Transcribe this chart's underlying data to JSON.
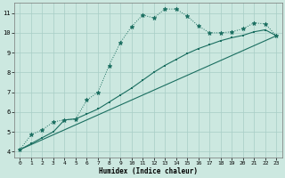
{
  "xlabel": "Humidex (Indice chaleur)",
  "bg_color": "#cce8e0",
  "line_color": "#1a6e60",
  "xlim": [
    -0.5,
    23.5
  ],
  "ylim": [
    3.7,
    11.5
  ],
  "xticks": [
    0,
    1,
    2,
    3,
    4,
    5,
    6,
    7,
    8,
    9,
    10,
    11,
    12,
    13,
    14,
    15,
    16,
    17,
    18,
    19,
    20,
    21,
    22,
    23
  ],
  "yticks": [
    4,
    5,
    6,
    7,
    8,
    9,
    10,
    11
  ],
  "curve1_x": [
    0,
    1,
    2,
    3,
    4,
    5,
    6,
    7,
    8,
    9,
    10,
    11,
    12,
    13,
    14,
    15,
    16,
    17,
    18,
    19,
    20,
    21,
    22,
    23
  ],
  "curve1_y": [
    4.1,
    4.85,
    5.1,
    5.5,
    5.6,
    5.65,
    6.6,
    7.0,
    8.35,
    9.5,
    10.3,
    10.9,
    10.75,
    11.2,
    11.2,
    10.85,
    10.35,
    10.0,
    10.0,
    10.05,
    10.2,
    10.5,
    10.45,
    9.85
  ],
  "curve2_x": [
    0,
    1,
    2,
    3,
    4,
    5,
    6,
    7,
    8,
    9,
    10,
    11,
    12,
    13,
    14,
    15,
    16,
    17,
    18,
    19,
    20,
    21,
    22,
    23
  ],
  "curve2_y": [
    4.1,
    4.4,
    4.7,
    5.0,
    5.6,
    5.65,
    5.9,
    6.15,
    6.5,
    6.85,
    7.2,
    7.6,
    8.0,
    8.35,
    8.65,
    8.95,
    9.2,
    9.4,
    9.6,
    9.75,
    9.87,
    10.05,
    10.15,
    9.85
  ],
  "curve3_x": [
    0,
    23
  ],
  "curve3_y": [
    4.1,
    9.85
  ]
}
